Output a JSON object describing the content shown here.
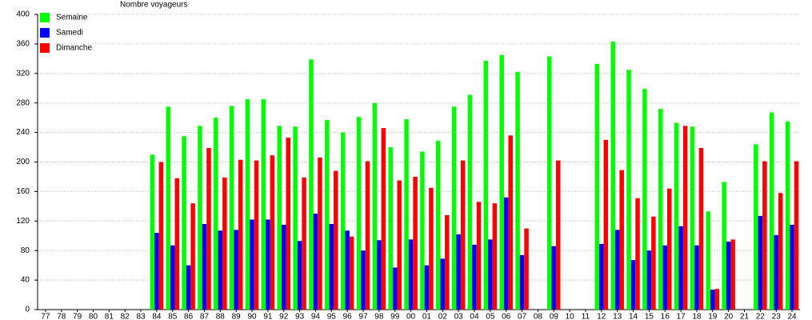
{
  "chart_data": {
    "type": "bar",
    "y_label": "Nombre voyageurs",
    "categories": [
      "77",
      "78",
      "79",
      "80",
      "81",
      "82",
      "83",
      "84",
      "85",
      "86",
      "87",
      "88",
      "89",
      "90",
      "91",
      "92",
      "93",
      "94",
      "95",
      "96",
      "97",
      "98",
      "99",
      "00",
      "01",
      "02",
      "03",
      "04",
      "05",
      "06",
      "07",
      "08",
      "09",
      "10",
      "11",
      "12",
      "13",
      "14",
      "15",
      "16",
      "17",
      "18",
      "19",
      "20",
      "21",
      "22",
      "23",
      "24"
    ],
    "series": [
      {
        "name": "Semaine",
        "color": "#00ff00",
        "values": [
          null,
          null,
          null,
          null,
          null,
          null,
          null,
          210,
          275,
          235,
          249,
          260,
          276,
          285,
          285,
          249,
          248,
          339,
          257,
          240,
          261,
          280,
          220,
          258,
          214,
          229,
          275,
          291,
          337,
          345,
          322,
          null,
          343,
          null,
          null,
          333,
          363,
          325,
          299,
          272,
          253,
          248,
          133,
          173,
          null,
          224,
          267,
          255
        ]
      },
      {
        "name": "Samedi",
        "color": "#0000ff",
        "values": [
          null,
          null,
          null,
          null,
          null,
          null,
          null,
          104,
          87,
          60,
          116,
          107,
          108,
          122,
          122,
          115,
          93,
          130,
          116,
          107,
          80,
          94,
          57,
          95,
          60,
          69,
          102,
          88,
          95,
          152,
          74,
          null,
          86,
          null,
          null,
          89,
          108,
          67,
          80,
          87,
          113,
          87,
          27,
          92,
          null,
          127,
          101,
          115
        ]
      },
      {
        "name": "Dimanche",
        "color": "#ff0000",
        "values": [
          null,
          null,
          null,
          null,
          null,
          null,
          null,
          200,
          178,
          144,
          219,
          179,
          203,
          202,
          209,
          233,
          179,
          206,
          188,
          99,
          201,
          246,
          175,
          180,
          165,
          128,
          202,
          146,
          144,
          236,
          110,
          null,
          202,
          null,
          null,
          230,
          189,
          151,
          126,
          164,
          249,
          219,
          28,
          95,
          null,
          201,
          158,
          201
        ]
      }
    ],
    "ylim": [
      0,
      400
    ],
    "yticks": [
      0,
      40,
      80,
      120,
      160,
      200,
      240,
      280,
      320,
      360,
      400
    ],
    "grid": true,
    "legend": "top-left"
  }
}
